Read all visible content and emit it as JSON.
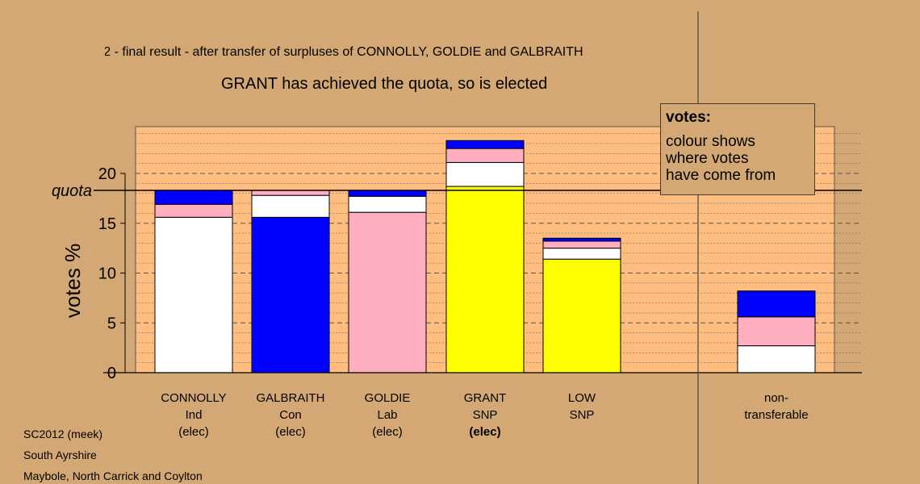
{
  "chart_data": {
    "type": "bar",
    "stacked": true,
    "title": "Stage 2 - final result - after transfer of surpluses of CONNOLLY, GOLDIE and GALBRAITH",
    "subtitle": "GRANT has achieved the quota, so is elected",
    "ylabel": "votes %",
    "ylim": [
      0,
      25
    ],
    "yticks": [
      0,
      5,
      10,
      15,
      20
    ],
    "quota": 18.3,
    "quota_label": "quota",
    "grid": true,
    "legend": {
      "title": "votes:",
      "lines": [
        "colour shows",
        "where votes",
        "have come from"
      ],
      "placement": "top-right"
    },
    "candidates": [
      {
        "name": "CONNOLLY",
        "party": "Ind",
        "status": "(elec)",
        "bold_status": false,
        "segments": [
          {
            "color": "#ffffff",
            "value": 15.6
          },
          {
            "color": "#ffaec0",
            "value": 1.3
          },
          {
            "color": "#0000ff",
            "value": 1.4
          }
        ]
      },
      {
        "name": "GALBRAITH",
        "party": "Con",
        "status": "(elec)",
        "bold_status": false,
        "segments": [
          {
            "color": "#0000ff",
            "value": 15.6
          },
          {
            "color": "#ffffff",
            "value": 2.2
          },
          {
            "color": "#ffaec0",
            "value": 0.5
          }
        ]
      },
      {
        "name": "GOLDIE",
        "party": "Lab",
        "status": "(elec)",
        "bold_status": false,
        "segments": [
          {
            "color": "#ffaec0",
            "value": 16.1
          },
          {
            "color": "#ffffff",
            "value": 1.6
          },
          {
            "color": "#0000ff",
            "value": 0.6
          }
        ]
      },
      {
        "name": "GRANT",
        "party": "SNP",
        "status": "(elec)",
        "bold_status": true,
        "segments": [
          {
            "color": "#ffff00",
            "value": 18.7
          },
          {
            "color": "#ffffff",
            "value": 2.4
          },
          {
            "color": "#ffaec0",
            "value": 1.4
          },
          {
            "color": "#0000ff",
            "value": 0.8
          }
        ]
      },
      {
        "name": "LOW",
        "party": "SNP",
        "status": "",
        "bold_status": false,
        "segments": [
          {
            "color": "#ffff00",
            "value": 11.4
          },
          {
            "color": "#ffffff",
            "value": 1.1
          },
          {
            "color": "#ffaec0",
            "value": 0.7
          },
          {
            "color": "#0000ff",
            "value": 0.3
          }
        ]
      },
      {
        "name": "non-",
        "party": "transferable",
        "status": "",
        "bold_status": false,
        "segments": [
          {
            "color": "#ffffff",
            "value": 2.7
          },
          {
            "color": "#ffaec0",
            "value": 2.9
          },
          {
            "color": "#0000ff",
            "value": 2.6
          }
        ]
      }
    ]
  },
  "footer": {
    "line1": "SC2012 (meek)",
    "line2": "South Ayrshire",
    "line3": "Maybole, North Carrick and Coylton"
  }
}
